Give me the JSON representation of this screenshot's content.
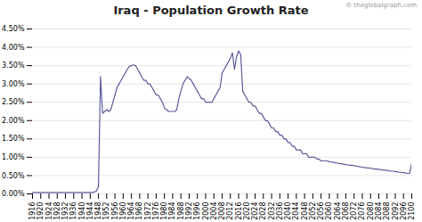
{
  "chart_data": {
    "type": "line",
    "title": "Iraq - Population Growth Rate",
    "annotations": [
      "© theglobalgraph.com"
    ],
    "color": "#5b5b9b",
    "grid": true,
    "xlim": [
      1916,
      2100
    ],
    "xticks": [
      1916,
      1920,
      1924,
      1928,
      1932,
      1936,
      1940,
      1944,
      1948,
      1952,
      1956,
      1960,
      1964,
      1968,
      1972,
      1976,
      1980,
      1984,
      1988,
      1992,
      1996,
      2000,
      2004,
      2008,
      2012,
      2016,
      2020,
      2024,
      2028,
      2032,
      2036,
      2040,
      2044,
      2048,
      2052,
      2056,
      2060,
      2064,
      2068,
      2072,
      2076,
      2080,
      2084,
      2088,
      2092,
      2096,
      2100
    ],
    "ylim": [
      0.0,
      0.045
    ],
    "yticks": [
      {
        "value": 0.0,
        "label": "0.00%"
      },
      {
        "value": 0.005,
        "label": "0.50%"
      },
      {
        "value": 0.01,
        "label": "1.00%"
      },
      {
        "value": 0.015,
        "label": "1.50%"
      },
      {
        "value": 0.02,
        "label": "2.00%"
      },
      {
        "value": 0.025,
        "label": "2.50%"
      },
      {
        "value": 0.03,
        "label": "3.00%"
      },
      {
        "value": 0.035,
        "label": "3.50%"
      },
      {
        "value": 0.04,
        "label": "4.00%"
      },
      {
        "value": 0.045,
        "label": "4.50%"
      }
    ],
    "x": [
      1916,
      1917,
      1918,
      1919,
      1920,
      1921,
      1922,
      1923,
      1924,
      1925,
      1926,
      1927,
      1928,
      1929,
      1930,
      1931,
      1932,
      1933,
      1934,
      1935,
      1936,
      1937,
      1938,
      1939,
      1940,
      1941,
      1942,
      1943,
      1944,
      1945,
      1946,
      1947,
      1948,
      1949,
      1950,
      1951,
      1952,
      1953,
      1954,
      1955,
      1956,
      1957,
      1958,
      1959,
      1960,
      1961,
      1962,
      1963,
      1964,
      1965,
      1966,
      1967,
      1968,
      1969,
      1970,
      1971,
      1972,
      1973,
      1974,
      1975,
      1976,
      1977,
      1978,
      1979,
      1980,
      1981,
      1982,
      1983,
      1984,
      1985,
      1986,
      1987,
      1988,
      1989,
      1990,
      1991,
      1992,
      1993,
      1994,
      1995,
      1996,
      1997,
      1998,
      1999,
      2000,
      2001,
      2002,
      2003,
      2004,
      2005,
      2006,
      2007,
      2008,
      2009,
      2010,
      2011,
      2012,
      2013,
      2014,
      2015,
      2016,
      2017,
      2018,
      2019,
      2020,
      2021,
      2022,
      2023,
      2024,
      2025,
      2026,
      2027,
      2028,
      2029,
      2030,
      2031,
      2032,
      2033,
      2034,
      2035,
      2036,
      2037,
      2038,
      2039,
      2040,
      2041,
      2042,
      2043,
      2044,
      2045,
      2046,
      2047,
      2048,
      2049,
      2050,
      2051,
      2052,
      2053,
      2054,
      2055,
      2056,
      2057,
      2058,
      2059,
      2060,
      2061,
      2062,
      2063,
      2064,
      2065,
      2066,
      2067,
      2068,
      2069,
      2070,
      2071,
      2072,
      2073,
      2074,
      2075,
      2076,
      2077,
      2078,
      2079,
      2080,
      2081,
      2082,
      2083,
      2084,
      2085,
      2086,
      2087,
      2088,
      2089,
      2090,
      2091,
      2092,
      2093,
      2094,
      2095,
      2096,
      2097,
      2098,
      2099,
      2100
    ],
    "values": [
      0.0004,
      0.0004,
      0.0004,
      0.0004,
      0.0004,
      0.0004,
      0.0004,
      0.0004,
      0.0004,
      0.0004,
      0.0004,
      0.0004,
      0.0004,
      0.0004,
      0.0004,
      0.0004,
      0.0004,
      0.0004,
      0.0004,
      0.0004,
      0.0004,
      0.0004,
      0.0004,
      0.0004,
      0.0004,
      0.0004,
      0.0004,
      0.0004,
      0.0004,
      0.0004,
      0.0005,
      0.0008,
      0.002,
      0.032,
      0.022,
      0.0225,
      0.023,
      0.0225,
      0.023,
      0.025,
      0.027,
      0.029,
      0.03,
      0.031,
      0.032,
      0.033,
      0.034,
      0.0348,
      0.035,
      0.0352,
      0.035,
      0.034,
      0.033,
      0.032,
      0.031,
      0.031,
      0.03,
      0.03,
      0.029,
      0.028,
      0.027,
      0.027,
      0.026,
      0.025,
      0.0235,
      0.023,
      0.0225,
      0.0225,
      0.0225,
      0.0225,
      0.023,
      0.026,
      0.028,
      0.03,
      0.031,
      0.032,
      0.0315,
      0.031,
      0.03,
      0.029,
      0.028,
      0.027,
      0.026,
      0.026,
      0.025,
      0.025,
      0.025,
      0.025,
      0.026,
      0.027,
      0.028,
      0.029,
      0.033,
      0.034,
      0.035,
      0.036,
      0.037,
      0.0385,
      0.034,
      0.0375,
      0.039,
      0.038,
      0.028,
      0.027,
      0.026,
      0.025,
      0.025,
      0.024,
      0.024,
      0.023,
      0.022,
      0.022,
      0.021,
      0.02,
      0.02,
      0.019,
      0.018,
      0.018,
      0.017,
      0.017,
      0.016,
      0.016,
      0.015,
      0.015,
      0.014,
      0.014,
      0.013,
      0.013,
      0.012,
      0.012,
      0.012,
      0.011,
      0.011,
      0.011,
      0.01,
      0.01,
      0.01,
      0.01,
      0.0095,
      0.0095,
      0.009,
      0.009,
      0.009,
      0.009,
      0.0088,
      0.0087,
      0.0086,
      0.0085,
      0.0084,
      0.0083,
      0.0082,
      0.0081,
      0.008,
      0.0079,
      0.0078,
      0.0078,
      0.0077,
      0.0076,
      0.0075,
      0.0074,
      0.0073,
      0.0072,
      0.0071,
      0.0071,
      0.007,
      0.0069,
      0.0068,
      0.0068,
      0.0067,
      0.0066,
      0.0065,
      0.0065,
      0.0064,
      0.0063,
      0.0062,
      0.0062,
      0.0061,
      0.006,
      0.0059,
      0.0059,
      0.0058,
      0.0057,
      0.0056,
      0.0056,
      0.0085
    ]
  }
}
